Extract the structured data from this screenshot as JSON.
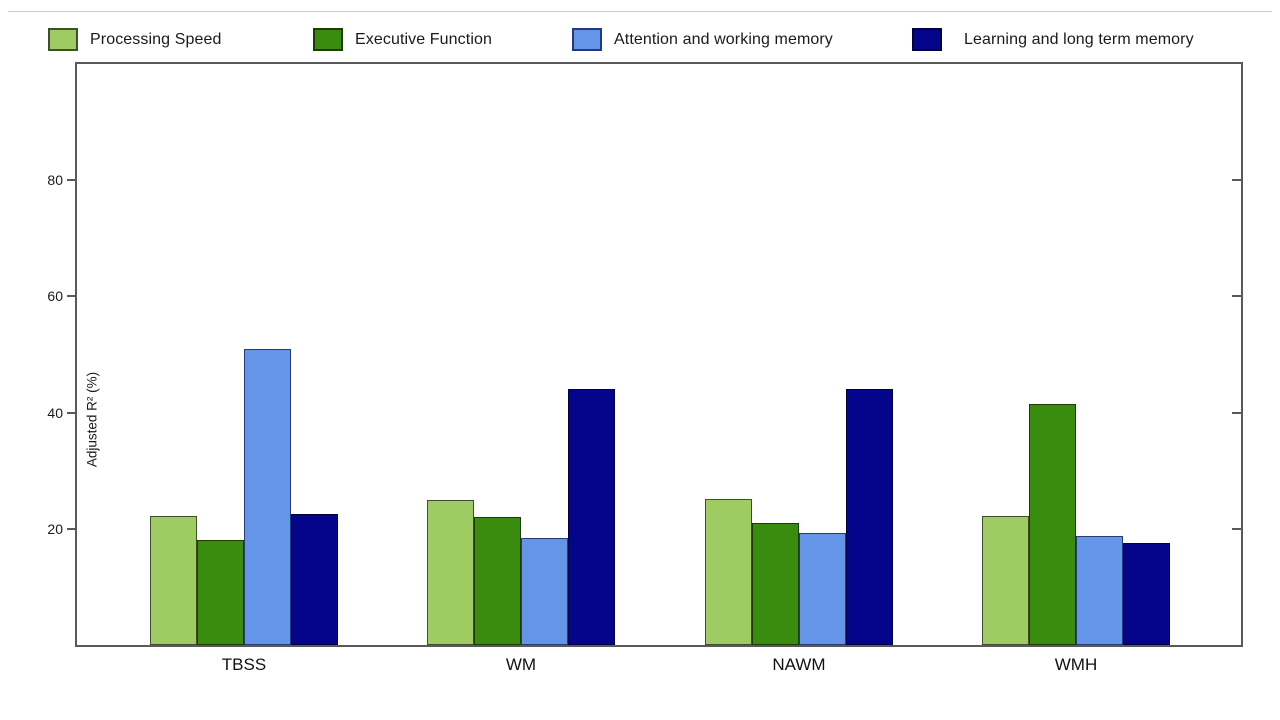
{
  "chart_data": {
    "type": "bar",
    "title": "",
    "xlabel": "",
    "ylabel": "Adjusted R² (%)",
    "categories": [
      "TBSS",
      "WM",
      "NAWM",
      "WMH"
    ],
    "series": [
      {
        "name": "Processing Speed",
        "color": "#9FCB63",
        "edge": "#3f4f2c",
        "values": [
          22.2,
          25.0,
          25.1,
          22.2
        ]
      },
      {
        "name": "Executive Function",
        "color": "#3A8C0E",
        "edge": "#1e3b06",
        "values": [
          18.0,
          22.0,
          21.0,
          41.5
        ]
      },
      {
        "name": "Attention and working memory",
        "color": "#6495E8",
        "edge": "#26397a",
        "values": [
          51.0,
          18.5,
          19.2,
          18.8
        ]
      },
      {
        "name": "Learning and long term memory",
        "color": "#05058C",
        "edge": "#02023f",
        "values": [
          22.5,
          44.0,
          44.0,
          17.5
        ]
      }
    ],
    "ylim": [
      0,
      100
    ],
    "yticks": [
      20,
      40,
      60,
      80
    ],
    "grid": false,
    "legend_position": "top"
  },
  "colors": {
    "axis": "#59595b",
    "text": "#1a1a1a",
    "top_rule": "#c9c9c9",
    "background": "#ffffff"
  }
}
